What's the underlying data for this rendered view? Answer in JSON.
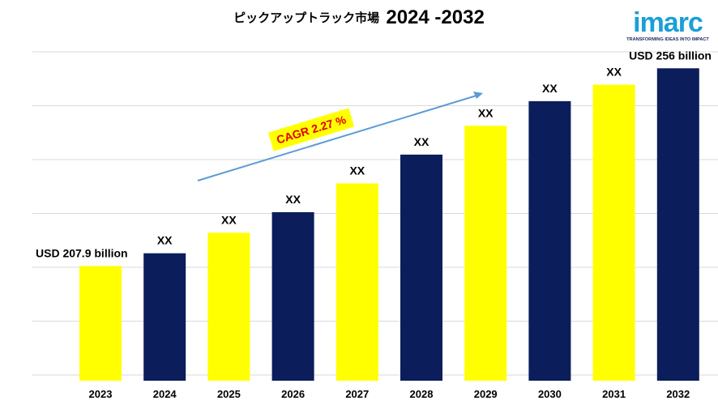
{
  "title": {
    "text": "ピックアップトラック市場",
    "year_range": "2024 -2032"
  },
  "logo": {
    "wordmark": "imarc",
    "tagline": "TRANSFORMING IDEAS INTO IMPACT",
    "colors": {
      "wordmark": "#1a9fd8",
      "tagline": "#1b2a5c"
    }
  },
  "chart_data": {
    "type": "bar",
    "categories": [
      "2023",
      "2024",
      "2025",
      "2026",
      "2027",
      "2028",
      "2029",
      "2030",
      "2031",
      "2032"
    ],
    "values": [
      207.9,
      211.0,
      216.0,
      221.0,
      228.0,
      235.0,
      242.0,
      248.0,
      252.0,
      256.0
    ],
    "data_labels": [
      "USD 207.9 billion",
      "XX",
      "XX",
      "XX",
      "XX",
      "XX",
      "XX",
      "XX",
      "XX",
      "USD 256 billion"
    ],
    "bar_colors": [
      "#ffff00",
      "#0b1e5b",
      "#ffff00",
      "#0b1e5b",
      "#ffff00",
      "#0b1e5b",
      "#ffff00",
      "#0b1e5b",
      "#ffff00",
      "#0b1e5b"
    ],
    "ylim": [
      180,
      260
    ],
    "grid": true,
    "annotation": {
      "text": "CAGR 2.27 %",
      "badge_color": "#ffff00",
      "text_color": "#e00000",
      "arrow_color": "#5b9bd5"
    },
    "title": "ピックアップトラック市場 2024 -2032",
    "xlabel": "",
    "ylabel": ""
  }
}
